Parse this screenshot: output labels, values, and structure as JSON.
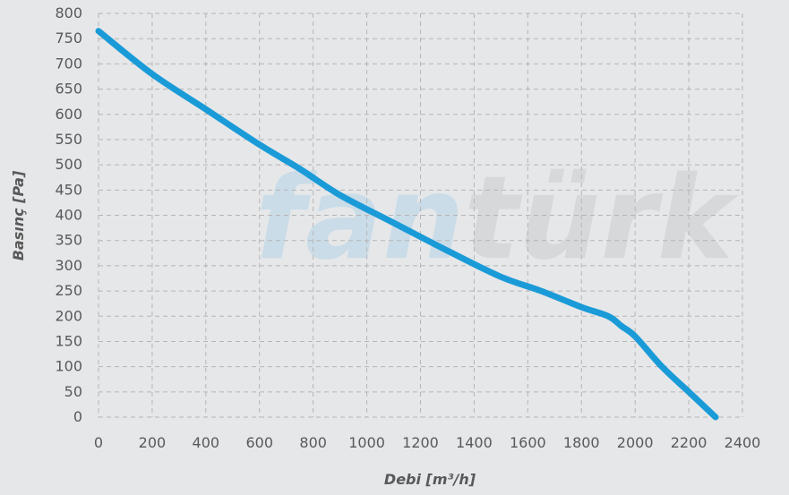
{
  "chart_data": {
    "type": "line",
    "xlabel": "Debi [m³/h]",
    "ylabel": "Basınç [Pa]",
    "xlim": [
      0,
      2400
    ],
    "ylim": [
      0,
      800
    ],
    "xticks": [
      0,
      200,
      400,
      600,
      800,
      1000,
      1200,
      1400,
      1600,
      1800,
      2000,
      2200,
      2400
    ],
    "yticks": [
      0,
      50,
      100,
      150,
      200,
      250,
      300,
      350,
      400,
      450,
      500,
      550,
      600,
      650,
      700,
      750,
      800
    ],
    "grid": true,
    "watermark": {
      "text_a": "fan",
      "text_b": "türk",
      "color_a": "#c9dce8",
      "color_b": "#d7d8da"
    },
    "line_color": "#1a9bd8",
    "series": [
      {
        "x": [
          0,
          200,
          400,
          600,
          750,
          900,
          1100,
          1300,
          1500,
          1650,
          1800,
          1900,
          1950,
          2000,
          2100,
          2200,
          2300
        ],
        "y": [
          765,
          680,
          610,
          540,
          492,
          440,
          385,
          330,
          278,
          250,
          218,
          200,
          180,
          160,
          100,
          50,
          0
        ]
      }
    ]
  }
}
